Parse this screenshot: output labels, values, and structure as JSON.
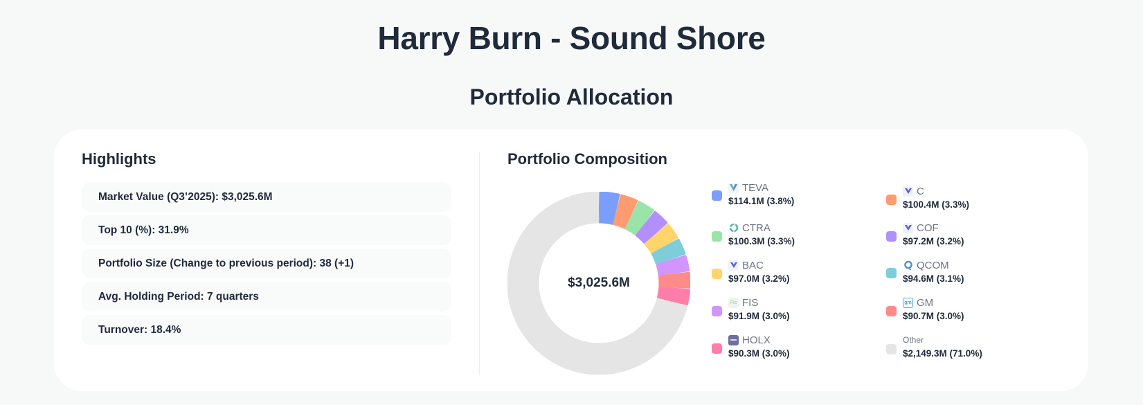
{
  "header": {
    "title": "Harry Burn - Sound Shore",
    "subtitle": "Portfolio Allocation"
  },
  "highlights": {
    "title": "Highlights",
    "items": [
      {
        "label": "Market Value (Q3’2025): $3,025.6M"
      },
      {
        "label": "Top 10 (%): 31.9%"
      },
      {
        "label": "Portfolio Size (Change to previous period): 38 (+1)"
      },
      {
        "label": "Avg. Holding Period: 7 quarters"
      },
      {
        "label": "Turnover: 18.4%"
      }
    ]
  },
  "composition": {
    "title": "Portfolio Composition",
    "center_label": "$3,025.6M",
    "legend": [
      {
        "ticker": "TEVA",
        "value_label": "$114.1M (3.8%)",
        "color": "#7B9EFD",
        "icon": "teva-logo-icon"
      },
      {
        "ticker": "C",
        "value_label": "$100.4M (3.3%)",
        "color": "#FF9B71",
        "icon": "c-logo-icon"
      },
      {
        "ticker": "CTRA",
        "value_label": "$100.3M (3.3%)",
        "color": "#9AE3A9",
        "icon": "ctra-logo-icon"
      },
      {
        "ticker": "COF",
        "value_label": "$97.2M (3.2%)",
        "color": "#B18FFD",
        "icon": "cof-logo-icon"
      },
      {
        "ticker": "BAC",
        "value_label": "$97.0M (3.2%)",
        "color": "#FFD56B",
        "icon": "bac-logo-icon"
      },
      {
        "ticker": "QCOM",
        "value_label": "$94.6M (3.1%)",
        "color": "#7ECDDB",
        "icon": "qcom-logo-icon"
      },
      {
        "ticker": "FIS",
        "value_label": "$91.9M (3.0%)",
        "color": "#D295FD",
        "icon": "fis-logo-icon"
      },
      {
        "ticker": "GM",
        "value_label": "$90.7M (3.0%)",
        "color": "#FF8A8A",
        "icon": "gm-logo-icon"
      },
      {
        "ticker": "HOLX",
        "value_label": "$90.3M (3.0%)",
        "color": "#FF7EA9",
        "icon": "holx-logo-icon"
      },
      {
        "ticker": "Other",
        "value_label": "$2,149.3M (71.0%)",
        "color": "#E4E5E4",
        "icon": null
      }
    ]
  },
  "chart_data": {
    "type": "pie",
    "variant": "donut",
    "title": "Portfolio Composition",
    "center_label": "$3,025.6M",
    "total": 3025.6,
    "unit": "$M",
    "categories": [
      "TEVA",
      "C",
      "CTRA",
      "COF",
      "BAC",
      "QCOM",
      "FIS",
      "GM",
      "HOLX",
      "Other"
    ],
    "values": [
      114.1,
      100.4,
      100.3,
      97.2,
      97.0,
      94.6,
      91.9,
      90.7,
      90.3,
      2149.3
    ],
    "percentages": [
      3.8,
      3.3,
      3.3,
      3.2,
      3.2,
      3.1,
      3.0,
      3.0,
      3.0,
      71.0
    ],
    "colors": [
      "#7B9EFD",
      "#FF9B71",
      "#9AE3A9",
      "#B18FFD",
      "#FFD56B",
      "#7ECDDB",
      "#D295FD",
      "#FF8A8A",
      "#FF7EA9",
      "#E4E5E4"
    ],
    "legend_position": "right",
    "start_angle": "top",
    "direction": "clockwise"
  }
}
